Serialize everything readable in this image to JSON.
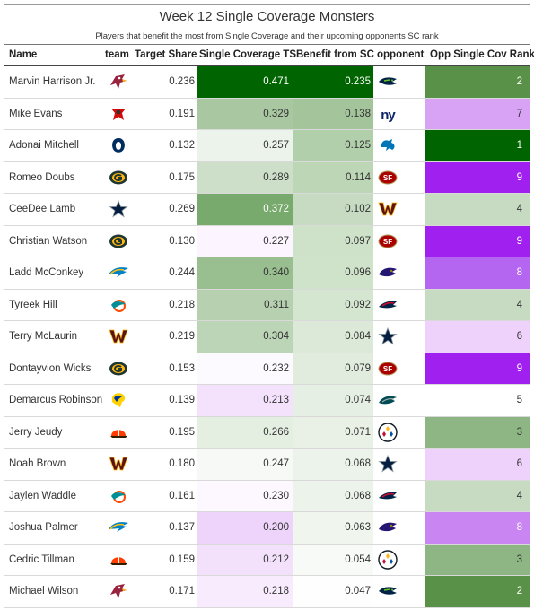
{
  "title": "Week 12 Single Coverage Monsters",
  "subtitle": "Players that benefit the most from Single Coverage and their upcoming opponents SC rank",
  "columns": {
    "name": "Name",
    "team": "team",
    "target_share": "Target Share",
    "single_cov_ts": "Single Coverage TS",
    "benefit": "Benefit from SC",
    "opponent": "opponent",
    "opp_rank": "Opp Single Cov Rank"
  },
  "rows": [
    {
      "name": "Marvin Harrison Jr.",
      "team": "ARI",
      "target_share": "0.236",
      "single_cov_ts": "0.471",
      "benefit": "0.235",
      "opponent": "SEA",
      "opp_rank": "2",
      "sc_color": "#006400",
      "ben_color": "#006400",
      "rank_color": "#5a9148",
      "sc_light": true,
      "ben_light": true,
      "rank_light": true
    },
    {
      "name": "Mike Evans",
      "team": "TB",
      "target_share": "0.191",
      "single_cov_ts": "0.329",
      "benefit": "0.138",
      "opponent": "NYG",
      "opp_rank": "7",
      "sc_color": "#a9c7a1",
      "ben_color": "#a4c59c",
      "rank_color": "#d8a2f5",
      "sc_light": false,
      "ben_light": false,
      "rank_light": false
    },
    {
      "name": "Adonai Mitchell",
      "team": "IND",
      "target_share": "0.132",
      "single_cov_ts": "0.257",
      "benefit": "0.125",
      "opponent": "DET",
      "opp_rank": "1",
      "sc_color": "#ecf3ea",
      "ben_color": "#b1cfaa",
      "rank_color": "#006400",
      "sc_light": false,
      "ben_light": false,
      "rank_light": true
    },
    {
      "name": "Romeo Doubs",
      "team": "GB",
      "target_share": "0.175",
      "single_cov_ts": "0.289",
      "benefit": "0.114",
      "opponent": "SF",
      "opp_rank": "9",
      "sc_color": "#cddfc8",
      "ben_color": "#bcd6b6",
      "rank_color": "#a020f0",
      "sc_light": false,
      "ben_light": false,
      "rank_light": true
    },
    {
      "name": "CeeDee Lamb",
      "team": "DAL",
      "target_share": "0.269",
      "single_cov_ts": "0.372",
      "benefit": "0.102",
      "opponent": "WAS",
      "opp_rank": "4",
      "sc_color": "#78a96d",
      "ben_color": "#c6dbc1",
      "rank_color": "#c7dac2",
      "sc_light": true,
      "ben_light": false,
      "rank_light": false
    },
    {
      "name": "Christian Watson",
      "team": "GB",
      "target_share": "0.130",
      "single_cov_ts": "0.227",
      "benefit": "0.097",
      "opponent": "SF",
      "opp_rank": "9",
      "sc_color": "#fcf5ff",
      "ben_color": "#cee2c9",
      "rank_color": "#a020f0",
      "sc_light": false,
      "ben_light": false,
      "rank_light": true
    },
    {
      "name": "Ladd McConkey",
      "team": "LAC",
      "target_share": "0.244",
      "single_cov_ts": "0.340",
      "benefit": "0.096",
      "opponent": "BAL",
      "opp_rank": "8",
      "sc_color": "#99bf90",
      "ben_color": "#cfe2ca",
      "rank_color": "#b566f0",
      "sc_light": false,
      "ben_light": false,
      "rank_light": true
    },
    {
      "name": "Tyreek Hill",
      "team": "MIA",
      "target_share": "0.218",
      "single_cov_ts": "0.311",
      "benefit": "0.092",
      "opponent": "NE",
      "opp_rank": "4",
      "sc_color": "#b6d0b0",
      "ben_color": "#d4e5d0",
      "rank_color": "#c7dac2",
      "sc_light": false,
      "ben_light": false,
      "rank_light": false
    },
    {
      "name": "Terry McLaurin",
      "team": "WAS",
      "target_share": "0.219",
      "single_cov_ts": "0.304",
      "benefit": "0.084",
      "opponent": "DAL",
      "opp_rank": "6",
      "sc_color": "#bcd5b6",
      "ben_color": "#dce9d8",
      "rank_color": "#eed2fb",
      "sc_light": false,
      "ben_light": false,
      "rank_light": false
    },
    {
      "name": "Dontayvion Wicks",
      "team": "GB",
      "target_share": "0.153",
      "single_cov_ts": "0.232",
      "benefit": "0.079",
      "opponent": "SF",
      "opp_rank": "9",
      "sc_color": "#fdfaff",
      "ben_color": "#e1ecde",
      "rank_color": "#a020f0",
      "sc_light": false,
      "ben_light": false,
      "rank_light": true
    },
    {
      "name": "Demarcus Robinson",
      "team": "LAR",
      "target_share": "0.139",
      "single_cov_ts": "0.213",
      "benefit": "0.074",
      "opponent": "PHI",
      "opp_rank": "5",
      "sc_color": "#f4e2fc",
      "ben_color": "#e6efe3",
      "rank_color": "#ffffff",
      "sc_light": false,
      "ben_light": false,
      "rank_light": false
    },
    {
      "name": "Jerry Jeudy",
      "team": "CLE",
      "target_share": "0.195",
      "single_cov_ts": "0.266",
      "benefit": "0.071",
      "opponent": "PIT",
      "opp_rank": "3",
      "sc_color": "#e4eee1",
      "ben_color": "#e9f1e6",
      "rank_color": "#8eb684",
      "sc_light": false,
      "ben_light": false,
      "rank_light": false
    },
    {
      "name": "Noah Brown",
      "team": "WAS",
      "target_share": "0.180",
      "single_cov_ts": "0.247",
      "benefit": "0.068",
      "opponent": "DAL",
      "opp_rank": "6",
      "sc_color": "#f6f9f5",
      "ben_color": "#ecf3ea",
      "rank_color": "#eed2fb",
      "sc_light": false,
      "ben_light": false,
      "rank_light": false
    },
    {
      "name": "Jaylen Waddle",
      "team": "MIA",
      "target_share": "0.161",
      "single_cov_ts": "0.230",
      "benefit": "0.068",
      "opponent": "NE",
      "opp_rank": "4",
      "sc_color": "#fdf8ff",
      "ben_color": "#ecf3ea",
      "rank_color": "#c7dac2",
      "sc_light": false,
      "ben_light": false,
      "rank_light": false
    },
    {
      "name": "Joshua Palmer",
      "team": "LAC",
      "target_share": "0.137",
      "single_cov_ts": "0.200",
      "benefit": "0.063",
      "opponent": "BAL",
      "opp_rank": "8",
      "sc_color": "#eed4fb",
      "ben_color": "#f0f6ee",
      "rank_color": "#c986f3",
      "sc_light": false,
      "ben_light": false,
      "rank_light": true
    },
    {
      "name": "Cedric Tillman",
      "team": "CLE",
      "target_share": "0.159",
      "single_cov_ts": "0.212",
      "benefit": "0.054",
      "opponent": "PIT",
      "opp_rank": "3",
      "sc_color": "#f3e1fc",
      "ben_color": "#f7faf6",
      "rank_color": "#8eb684",
      "sc_light": false,
      "ben_light": false,
      "rank_light": false
    },
    {
      "name": "Michael Wilson",
      "team": "ARI",
      "target_share": "0.171",
      "single_cov_ts": "0.218",
      "benefit": "0.047",
      "opponent": "SEA",
      "opp_rank": "2",
      "sc_color": "#f7ebfd",
      "ben_color": "#fdfefd",
      "rank_color": "#5a9148",
      "sc_light": false,
      "ben_light": false,
      "rank_light": true
    }
  ]
}
